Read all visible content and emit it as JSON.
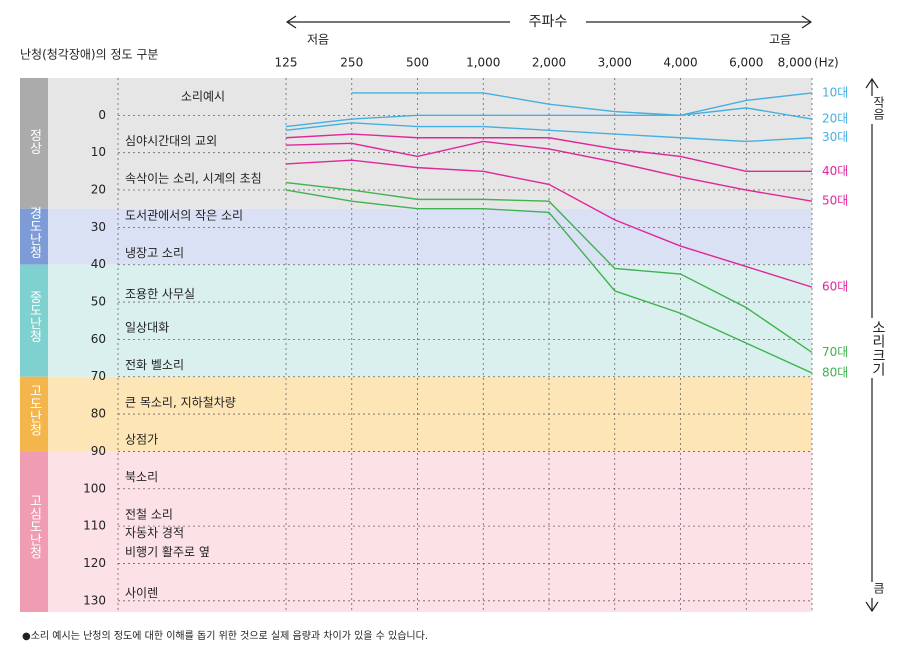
{
  "chart_data": {
    "type": "line",
    "title": "난청(청각장애)의 정도 구분",
    "x_label": "주파수",
    "x_low_label": "저음",
    "x_high_label": "고음",
    "x_unit": "(Hz)",
    "y_side_label": "소리크기",
    "y_top_label": "작음",
    "y_bottom_label": "큼",
    "example_header": "소리예시",
    "footnote": "●소리 예시는 난청의 정도에 대한 이해를 돕기 위한 것으로 실제 음량과 차이가 있을 수 있습니다.",
    "categories": [
      "125",
      "250",
      "500",
      "1,000",
      "2,000",
      "3,000",
      "4,000",
      "6,000",
      "8,000"
    ],
    "ylim": [
      -10,
      133
    ],
    "yticks": [
      0,
      10,
      20,
      30,
      40,
      50,
      60,
      70,
      80,
      90,
      100,
      110,
      120,
      130
    ],
    "y_inverted": true,
    "grid": true,
    "bands": [
      {
        "label": "정상",
        "to": 25,
        "color": "#e6e6e6",
        "label_color": "#ababab"
      },
      {
        "label": "경도난청",
        "from": 25,
        "to": 40,
        "color": "#dbe1f4",
        "label_color": "#7d9bd6"
      },
      {
        "label": "중도난청",
        "from": 40,
        "to": 70,
        "color": "#d9f0ee",
        "label_color": "#7fd1cf"
      },
      {
        "label": "고도난청",
        "from": 70,
        "to": 90,
        "color": "#fde5b6",
        "label_color": "#f4b54c"
      },
      {
        "label": "고심도난청",
        "from": 90,
        "color": "#fce1e7",
        "label_color": "#f09db3"
      }
    ],
    "examples": [
      {
        "label": "심야시간대의 교외",
        "db": 7
      },
      {
        "label": "속삭이는 소리, 시계의 초침",
        "db": 17
      },
      {
        "label": "도서관에서의 작은 소리",
        "db": 27
      },
      {
        "label": "냉장고 소리",
        "db": 37
      },
      {
        "label": "조용한 사무실",
        "db": 48
      },
      {
        "label": "일상대화",
        "db": 57
      },
      {
        "label": "전화 벨소리",
        "db": 67
      },
      {
        "label": "큰 목소리, 지하철차량",
        "db": 77
      },
      {
        "label": "상점가",
        "db": 87
      },
      {
        "label": "북소리",
        "db": 97
      },
      {
        "label": "전철 소리",
        "db": 107
      },
      {
        "label": "자동차 경적",
        "db": 112
      },
      {
        "label": "비행기 활주로 옆",
        "db": 117
      },
      {
        "label": "사이렌",
        "db": 128
      }
    ],
    "series": [
      {
        "name": "10대",
        "color": "#45b0e0",
        "values": [
          null,
          -6,
          -6,
          -6,
          -3,
          -1,
          0,
          -4,
          -6
        ]
      },
      {
        "name": "20대",
        "color": "#45b0e0",
        "values": [
          3,
          1,
          0,
          0,
          0,
          0,
          0,
          -2,
          1
        ]
      },
      {
        "name": "30대",
        "color": "#45b0e0",
        "values": [
          4,
          2,
          3,
          3,
          4,
          5,
          6,
          7,
          6
        ]
      },
      {
        "name": "40대",
        "color": "#e0269a",
        "values": [
          6,
          5,
          6,
          6,
          6,
          9,
          11,
          15,
          15
        ]
      },
      {
        "name": "50대",
        "color": "#e0269a",
        "values": [
          8,
          7.5,
          11,
          7,
          9,
          12.5,
          16.5,
          20,
          23
        ]
      },
      {
        "name": "60대",
        "color": "#e0269a",
        "values": [
          13,
          12,
          14,
          15,
          18.5,
          28,
          35,
          40.5,
          46
        ]
      },
      {
        "name": "70대",
        "color": "#3fb34f",
        "values": [
          18,
          20,
          22.5,
          22.5,
          23,
          41,
          42.5,
          51.5,
          63.5
        ]
      },
      {
        "name": "80대",
        "color": "#3fb34f",
        "values": [
          20,
          23,
          25,
          25,
          26,
          47,
          53,
          61,
          69
        ]
      }
    ]
  }
}
